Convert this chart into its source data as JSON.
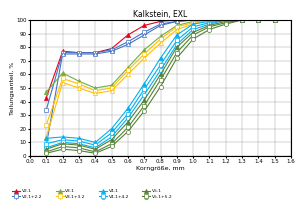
{
  "title": "Kalkstein, EXL",
  "xlabel": "Korngröße, mm",
  "ylabel": "Teilungsanteil, %",
  "xlim": [
    0.0,
    1.6
  ],
  "ylim": [
    0,
    100
  ],
  "xticks": [
    0.0,
    0.1,
    0.2,
    0.3,
    0.4,
    0.5,
    0.6,
    0.7,
    0.8,
    0.9,
    1.0,
    1.1,
    1.2,
    1.3,
    1.4,
    1.5,
    1.6
  ],
  "yticks": [
    0,
    10,
    20,
    30,
    40,
    50,
    60,
    70,
    80,
    90,
    100
  ],
  "series": [
    {
      "label": "V2.1",
      "color": "#e8001c",
      "marker": "^",
      "markersize": 3,
      "linewidth": 0.8,
      "filled": true,
      "x": [
        0.1,
        0.2,
        0.3,
        0.4,
        0.5,
        0.6,
        0.7,
        0.8,
        0.9,
        1.0,
        1.1,
        1.2,
        1.3,
        1.4,
        1.5
      ],
      "y": [
        43,
        77,
        76,
        76,
        79,
        89,
        96,
        99,
        100,
        100,
        100,
        100,
        100,
        100,
        100
      ]
    },
    {
      "label": "V2.1+2.2",
      "color": "#4472c4",
      "marker": "s",
      "markersize": 3,
      "linewidth": 0.8,
      "filled": false,
      "x": [
        0.1,
        0.2,
        0.3,
        0.4,
        0.5,
        0.6,
        0.7,
        0.8,
        0.9,
        1.0,
        1.1,
        1.2,
        1.3,
        1.4,
        1.5
      ],
      "y": [
        34,
        76,
        76,
        76,
        78,
        84,
        91,
        97,
        99,
        100,
        100,
        100,
        100,
        100,
        100
      ]
    },
    {
      "label": "V2.1+2.2+2.3",
      "color": "#4472c4",
      "marker": "^",
      "markersize": 3,
      "linewidth": 0.8,
      "filled": false,
      "x": [
        0.1,
        0.2,
        0.3,
        0.4,
        0.5,
        0.6,
        0.7,
        0.8,
        0.9,
        1.0,
        1.1,
        1.2,
        1.3,
        1.4,
        1.5
      ],
      "y": [
        8,
        75,
        75,
        75,
        77,
        82,
        89,
        96,
        99,
        100,
        100,
        100,
        100,
        100,
        100
      ]
    },
    {
      "label": "V3.1",
      "color": "#70ad47",
      "marker": "^",
      "markersize": 3,
      "linewidth": 0.8,
      "filled": true,
      "x": [
        0.1,
        0.2,
        0.3,
        0.4,
        0.5,
        0.6,
        0.7,
        0.8,
        0.9,
        1.0,
        1.1,
        1.2,
        1.3,
        1.4,
        1.5
      ],
      "y": [
        47,
        61,
        55,
        50,
        52,
        65,
        78,
        88,
        96,
        99,
        100,
        100,
        100,
        100,
        100
      ]
    },
    {
      "label": "V3.1+3.2",
      "color": "#ffc000",
      "marker": "s",
      "markersize": 3,
      "linewidth": 0.8,
      "filled": false,
      "x": [
        0.1,
        0.2,
        0.3,
        0.4,
        0.5,
        0.6,
        0.7,
        0.8,
        0.9,
        1.0,
        1.1,
        1.2,
        1.3,
        1.4,
        1.5
      ],
      "y": [
        23,
        57,
        53,
        48,
        50,
        63,
        75,
        86,
        95,
        98,
        100,
        100,
        100,
        100,
        100
      ]
    },
    {
      "label": "V3.1+3.2+3.3",
      "color": "#ffc000",
      "marker": "^",
      "markersize": 3,
      "linewidth": 0.8,
      "filled": false,
      "x": [
        0.1,
        0.2,
        0.3,
        0.4,
        0.5,
        0.6,
        0.7,
        0.8,
        0.9,
        1.0,
        1.1,
        1.2,
        1.3,
        1.4,
        1.5
      ],
      "y": [
        14,
        54,
        50,
        46,
        48,
        60,
        72,
        83,
        93,
        97,
        100,
        100,
        100,
        100,
        100
      ]
    },
    {
      "label": "V4.1",
      "color": "#00b0f0",
      "marker": "^",
      "markersize": 3,
      "linewidth": 0.8,
      "filled": true,
      "x": [
        0.1,
        0.2,
        0.3,
        0.4,
        0.5,
        0.6,
        0.7,
        0.8,
        0.9,
        1.0,
        1.1,
        1.2,
        1.3,
        1.4,
        1.5
      ],
      "y": [
        13,
        14,
        13,
        10,
        20,
        35,
        53,
        72,
        89,
        97,
        99,
        100,
        100,
        100,
        100
      ]
    },
    {
      "label": "V4.1+4.2",
      "color": "#00b0f0",
      "marker": "s",
      "markersize": 3,
      "linewidth": 0.8,
      "filled": false,
      "x": [
        0.1,
        0.2,
        0.3,
        0.4,
        0.5,
        0.6,
        0.7,
        0.8,
        0.9,
        1.0,
        1.1,
        1.2,
        1.3,
        1.4,
        1.5
      ],
      "y": [
        9,
        12,
        11,
        8,
        17,
        31,
        49,
        67,
        85,
        95,
        98,
        100,
        100,
        100,
        100
      ]
    },
    {
      "label": "V4.1+4.2+4.3",
      "color": "#00b0f0",
      "marker": "o",
      "markersize": 3,
      "linewidth": 0.8,
      "filled": false,
      "x": [
        0.1,
        0.2,
        0.3,
        0.4,
        0.5,
        0.6,
        0.7,
        0.8,
        0.9,
        1.0,
        1.1,
        1.2,
        1.3,
        1.4,
        1.5
      ],
      "y": [
        6,
        10,
        9,
        6,
        14,
        28,
        45,
        63,
        82,
        93,
        97,
        100,
        100,
        100,
        100
      ]
    },
    {
      "label": "V5.1",
      "color": "#548235",
      "marker": "^",
      "markersize": 3,
      "linewidth": 0.8,
      "filled": true,
      "x": [
        0.1,
        0.2,
        0.3,
        0.4,
        0.5,
        0.6,
        0.7,
        0.8,
        0.9,
        1.0,
        1.1,
        1.2,
        1.3,
        1.4,
        1.5
      ],
      "y": [
        5,
        9,
        8,
        5,
        12,
        25,
        41,
        60,
        80,
        91,
        96,
        99,
        100,
        100,
        100
      ]
    },
    {
      "label": "V5.1+5.2",
      "color": "#548235",
      "marker": "s",
      "markersize": 3,
      "linewidth": 0.8,
      "filled": false,
      "x": [
        0.1,
        0.2,
        0.3,
        0.4,
        0.5,
        0.6,
        0.7,
        0.8,
        0.9,
        1.0,
        1.1,
        1.2,
        1.3,
        1.4,
        1.5
      ],
      "y": [
        3,
        7,
        6,
        3,
        9,
        21,
        37,
        56,
        76,
        89,
        95,
        98,
        100,
        100,
        100
      ]
    },
    {
      "label": "V5.1+5.2+5.3",
      "color": "#548235",
      "marker": "o",
      "markersize": 3,
      "linewidth": 0.8,
      "filled": false,
      "x": [
        0.1,
        0.2,
        0.3,
        0.4,
        0.5,
        0.6,
        0.7,
        0.8,
        0.9,
        1.0,
        1.1,
        1.2,
        1.3,
        1.4,
        1.5
      ],
      "y": [
        2,
        5,
        4,
        2,
        7,
        18,
        33,
        51,
        72,
        86,
        93,
        97,
        100,
        100,
        100
      ]
    }
  ],
  "legend_rows": [
    [
      "V2.1",
      "V2.1+2.2",
      "V2.1+2.2+2.3",
      "V3.1"
    ],
    [
      "V3.1+3.2",
      "V3.1+3.2+3.3",
      "V4.1",
      "V4.1+4.2"
    ],
    [
      "V4.1+4.2+4.3",
      "V5.1",
      "V5.1+5.2",
      "V5.1+5.2+5.3"
    ]
  ],
  "bg_color": "#ffffff",
  "grid_color": "#999999"
}
